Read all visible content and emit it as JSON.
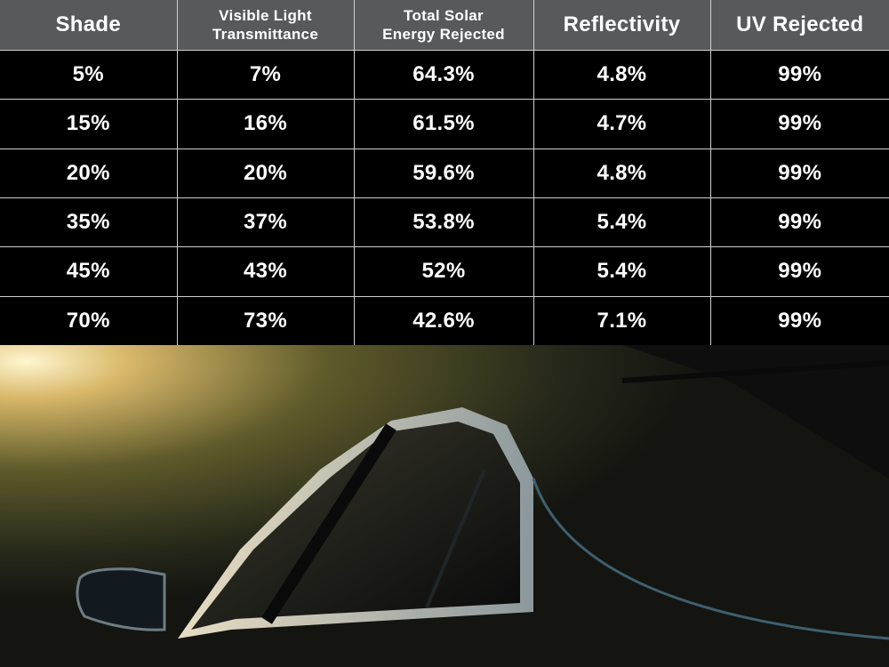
{
  "table": {
    "header": [
      "Shade",
      "Visible Light Transmittance",
      "Total Solar Energy Rejected",
      "Reflectivity",
      "UV Rejected"
    ],
    "rows": [
      [
        "5%",
        "7%",
        "64.3%",
        "4.8%",
        "99%"
      ],
      [
        "15%",
        "16%",
        "61.5%",
        "4.7%",
        "99%"
      ],
      [
        "20%",
        "20%",
        "59.6%",
        "4.8%",
        "99%"
      ],
      [
        "35%",
        "37%",
        "53.8%",
        "5.4%",
        "99%"
      ],
      [
        "45%",
        "43%",
        "52%",
        "5.4%",
        "99%"
      ],
      [
        "70%",
        "73%",
        "42.6%",
        "7.1%",
        "99%"
      ]
    ]
  }
}
